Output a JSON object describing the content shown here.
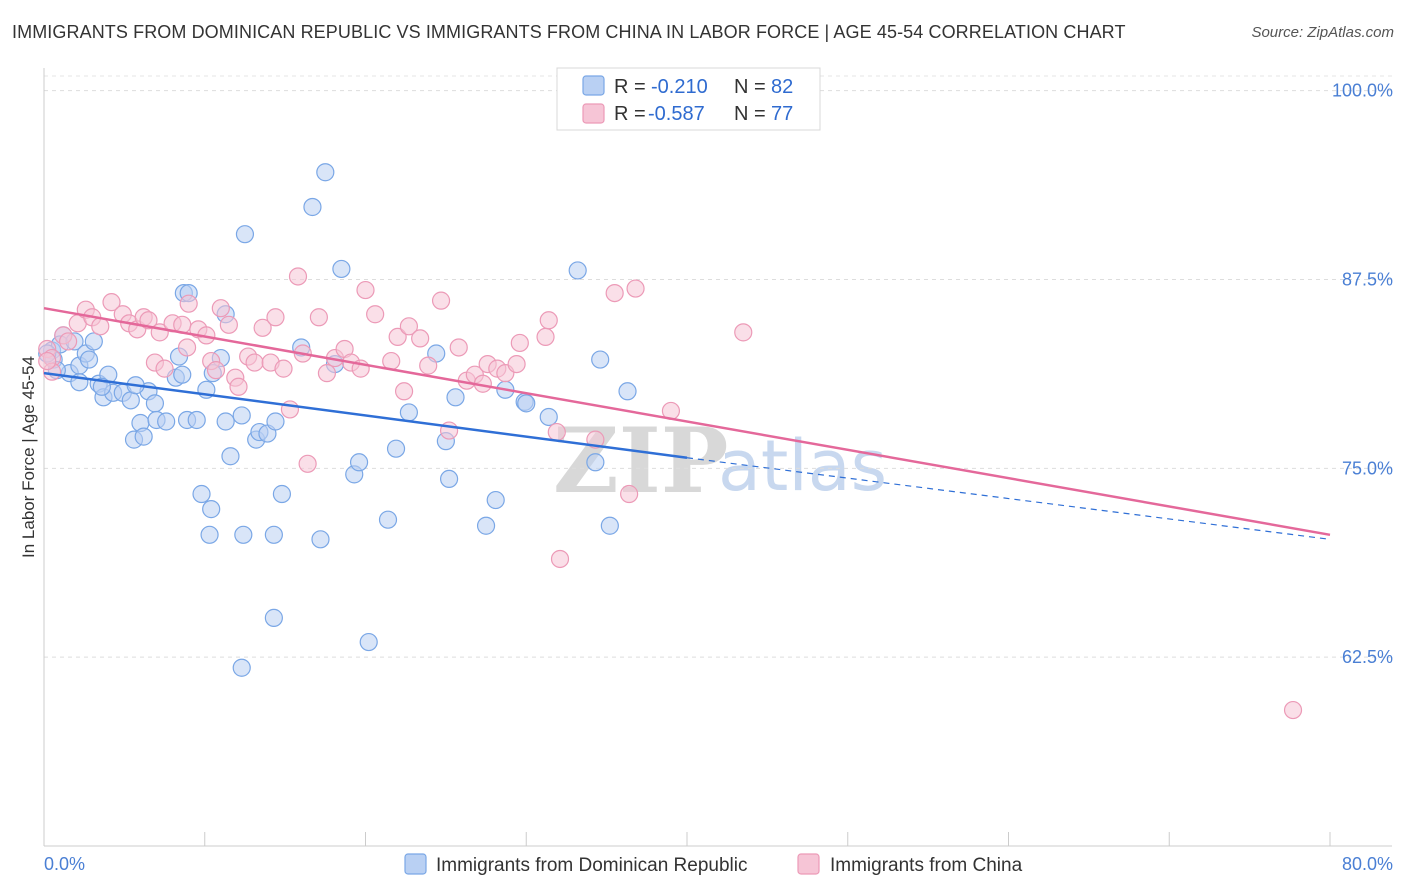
{
  "title": "IMMIGRANTS FROM DOMINICAN REPUBLIC VS IMMIGRANTS FROM CHINA IN LABOR FORCE | AGE 45-54 CORRELATION CHART",
  "source": "Source: ZipAtlas.com",
  "watermark": {
    "zip": "ZIP",
    "atlas": "atlas"
  },
  "legend": {
    "series": [
      {
        "r_label": "R = ",
        "r_value": "-0.210",
        "n_label": "N = ",
        "n_value": "82"
      },
      {
        "r_label": "R = ",
        "r_value": "-0.587",
        "n_label": "N = ",
        "n_value": "77"
      }
    ]
  },
  "bottom_legend": [
    "Immigrants from Dominican Republic",
    "Immigrants from China"
  ],
  "chart_data": {
    "type": "scatter",
    "title": "IMMIGRANTS FROM DOMINICAN REPUBLIC VS IMMIGRANTS FROM CHINA IN LABOR FORCE | AGE 45-54 CORRELATION CHART",
    "xlabel": "",
    "ylabel": "In Labor Force | Age 45-54",
    "xlim": [
      0,
      80
    ],
    "ylim": [
      50,
      101.5
    ],
    "x_tick_labels": [
      "0.0%",
      "80.0%"
    ],
    "y_ticks": [
      62.5,
      75.0,
      87.5,
      100.0
    ],
    "y_tick_labels": [
      "62.5%",
      "75.0%",
      "87.5%",
      "100.0%"
    ],
    "grid": "horizontal dashed",
    "series": [
      {
        "name": "Immigrants from Dominican Republic",
        "color": "#7aa7e6",
        "fill": "#b9d0f3",
        "line_color": "#2f6fd6",
        "trend": {
          "x0": 0,
          "y0": 81.3,
          "x1": 40,
          "y1": 75.7,
          "dashed_to_x": 80,
          "dashed_to_y": 70.3
        },
        "points": [
          [
            0.5,
            82.8
          ],
          [
            0.6,
            82.2
          ],
          [
            1.2,
            83.8
          ],
          [
            1.0,
            83.2
          ],
          [
            1.6,
            81.3
          ],
          [
            2.2,
            81.8
          ],
          [
            1.9,
            83.4
          ],
          [
            2.2,
            80.7
          ],
          [
            2.6,
            82.6
          ],
          [
            2.8,
            82.2
          ],
          [
            3.1,
            83.4
          ],
          [
            3.4,
            80.6
          ],
          [
            3.7,
            79.7
          ],
          [
            4.3,
            80.0
          ],
          [
            4.9,
            80.0
          ],
          [
            5.4,
            79.5
          ],
          [
            6.5,
            80.1
          ],
          [
            6.0,
            78.0
          ],
          [
            5.7,
            80.5
          ],
          [
            5.6,
            76.9
          ],
          [
            6.2,
            77.1
          ],
          [
            6.9,
            79.3
          ],
          [
            7.0,
            78.2
          ],
          [
            7.6,
            78.1
          ],
          [
            8.2,
            81.0
          ],
          [
            8.4,
            82.4
          ],
          [
            8.6,
            81.2
          ],
          [
            8.9,
            78.2
          ],
          [
            9.5,
            78.2
          ],
          [
            10.1,
            80.2
          ],
          [
            10.5,
            81.3
          ],
          [
            11.0,
            82.3
          ],
          [
            11.3,
            78.1
          ],
          [
            11.6,
            75.8
          ],
          [
            9.8,
            73.3
          ],
          [
            10.4,
            72.3
          ],
          [
            10.3,
            70.6
          ],
          [
            12.4,
            70.6
          ],
          [
            14.3,
            70.6
          ],
          [
            17.2,
            70.3
          ],
          [
            12.3,
            78.5
          ],
          [
            13.2,
            76.9
          ],
          [
            13.4,
            77.4
          ],
          [
            13.9,
            77.3
          ],
          [
            14.4,
            78.1
          ],
          [
            14.8,
            73.3
          ],
          [
            12.5,
            90.5
          ],
          [
            8.7,
            86.6
          ],
          [
            9.0,
            86.6
          ],
          [
            11.3,
            85.2
          ],
          [
            16.0,
            83.0
          ],
          [
            17.5,
            94.6
          ],
          [
            16.7,
            92.3
          ],
          [
            18.5,
            88.2
          ],
          [
            18.1,
            81.9
          ],
          [
            19.3,
            74.6
          ],
          [
            19.6,
            75.4
          ],
          [
            21.4,
            71.6
          ],
          [
            21.9,
            76.3
          ],
          [
            22.7,
            78.7
          ],
          [
            24.4,
            82.6
          ],
          [
            25.0,
            76.8
          ],
          [
            25.2,
            74.3
          ],
          [
            25.6,
            79.7
          ],
          [
            27.5,
            71.2
          ],
          [
            28.1,
            72.9
          ],
          [
            28.7,
            80.2
          ],
          [
            29.9,
            79.4
          ],
          [
            30.0,
            79.3
          ],
          [
            31.4,
            78.4
          ],
          [
            33.2,
            88.1
          ],
          [
            34.6,
            82.2
          ],
          [
            34.3,
            75.4
          ],
          [
            35.2,
            71.2
          ],
          [
            36.3,
            80.1
          ],
          [
            14.3,
            65.1
          ],
          [
            20.2,
            63.5
          ],
          [
            12.3,
            61.8
          ],
          [
            4.0,
            81.2
          ],
          [
            3.6,
            80.4
          ],
          [
            0.2,
            82.6
          ],
          [
            0.8,
            81.5
          ]
        ]
      },
      {
        "name": "Immigrants from China",
        "color": "#ec9ab7",
        "fill": "#f6c5d6",
        "line_color": "#e4689a",
        "trend": {
          "x0": 0,
          "y0": 85.6,
          "x1": 80,
          "y1": 70.6
        },
        "points": [
          [
            0.2,
            82.9
          ],
          [
            0.5,
            82.3
          ],
          [
            1.2,
            83.8
          ],
          [
            1.5,
            83.4
          ],
          [
            2.1,
            84.6
          ],
          [
            2.6,
            85.5
          ],
          [
            3.0,
            85.0
          ],
          [
            3.5,
            84.4
          ],
          [
            4.2,
            86.0
          ],
          [
            4.9,
            85.2
          ],
          [
            5.3,
            84.6
          ],
          [
            5.8,
            84.2
          ],
          [
            6.2,
            85.0
          ],
          [
            6.5,
            84.8
          ],
          [
            6.9,
            82.0
          ],
          [
            7.2,
            84.0
          ],
          [
            7.5,
            81.6
          ],
          [
            8.0,
            84.6
          ],
          [
            8.6,
            84.5
          ],
          [
            8.9,
            83.0
          ],
          [
            9.0,
            85.9
          ],
          [
            9.6,
            84.2
          ],
          [
            10.1,
            83.8
          ],
          [
            10.4,
            82.1
          ],
          [
            10.7,
            81.5
          ],
          [
            11.0,
            85.6
          ],
          [
            11.5,
            84.5
          ],
          [
            11.9,
            81.0
          ],
          [
            12.1,
            80.4
          ],
          [
            12.7,
            82.4
          ],
          [
            13.1,
            82.0
          ],
          [
            13.6,
            84.3
          ],
          [
            14.1,
            82.0
          ],
          [
            14.4,
            85.0
          ],
          [
            14.9,
            81.6
          ],
          [
            15.3,
            78.9
          ],
          [
            15.8,
            87.7
          ],
          [
            16.1,
            82.6
          ],
          [
            16.4,
            75.3
          ],
          [
            17.1,
            85.0
          ],
          [
            17.6,
            81.3
          ],
          [
            18.1,
            82.3
          ],
          [
            18.7,
            82.9
          ],
          [
            19.1,
            82.0
          ],
          [
            19.7,
            81.6
          ],
          [
            20.0,
            86.8
          ],
          [
            20.6,
            85.2
          ],
          [
            21.6,
            82.1
          ],
          [
            22.0,
            83.7
          ],
          [
            22.4,
            80.1
          ],
          [
            22.7,
            84.4
          ],
          [
            23.4,
            83.6
          ],
          [
            23.9,
            81.8
          ],
          [
            24.7,
            86.1
          ],
          [
            25.2,
            77.5
          ],
          [
            25.8,
            83.0
          ],
          [
            26.3,
            80.8
          ],
          [
            26.8,
            81.2
          ],
          [
            27.3,
            80.6
          ],
          [
            27.6,
            81.9
          ],
          [
            28.2,
            81.6
          ],
          [
            28.7,
            81.3
          ],
          [
            29.4,
            81.9
          ],
          [
            29.6,
            83.3
          ],
          [
            31.2,
            83.7
          ],
          [
            31.4,
            84.8
          ],
          [
            31.9,
            77.4
          ],
          [
            32.1,
            69.0
          ],
          [
            34.3,
            76.9
          ],
          [
            35.5,
            86.6
          ],
          [
            36.4,
            73.3
          ],
          [
            36.8,
            86.9
          ],
          [
            39.0,
            78.8
          ],
          [
            43.5,
            84.0
          ],
          [
            0.5,
            81.4
          ],
          [
            0.2,
            82.1
          ],
          [
            77.7,
            59.0
          ]
        ]
      }
    ]
  }
}
